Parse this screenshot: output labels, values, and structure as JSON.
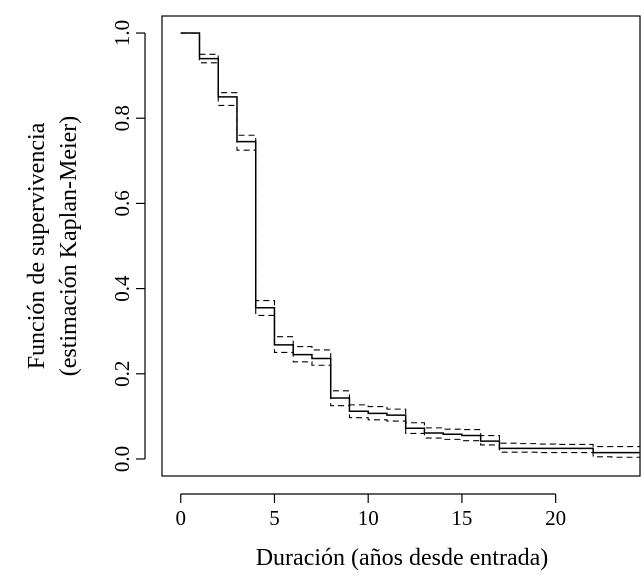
{
  "chart_data": {
    "type": "line",
    "xlabel": "Duración (años desde entrada)",
    "ylabel": [
      "Función de supervivencia",
      "(estimación Kaplan-Meier)"
    ],
    "xlim": [
      -1,
      24.5
    ],
    "ylim": [
      -0.04,
      1.04
    ],
    "x_ticks": [
      0,
      5,
      10,
      15,
      20
    ],
    "x_tick_labels": [
      "0",
      "5",
      "10",
      "15",
      "20"
    ],
    "y_ticks": [
      0.0,
      0.2,
      0.4,
      0.6,
      0.8,
      1.0
    ],
    "y_tick_labels": [
      "0.0",
      "0.2",
      "0.4",
      "0.6",
      "0.8",
      "1.0"
    ],
    "grid": false,
    "series": [
      {
        "role": "estimate",
        "line_style": "solid",
        "x": [
          0,
          1,
          2,
          3,
          4,
          5,
          6,
          7,
          8,
          9,
          10,
          11,
          12,
          13,
          14,
          15,
          16,
          17,
          18,
          19,
          20,
          21,
          22,
          23,
          24
        ],
        "y": [
          1.0,
          0.94,
          0.85,
          0.745,
          0.355,
          0.268,
          0.245,
          0.236,
          0.143,
          0.112,
          0.107,
          0.103,
          0.072,
          0.061,
          0.058,
          0.055,
          0.042,
          0.025,
          0.025,
          0.025,
          0.025,
          0.025,
          0.015,
          0.015,
          0.015
        ]
      },
      {
        "role": "upper-ci",
        "line_style": "dashed",
        "x": [
          0,
          1,
          2,
          3,
          4,
          5,
          6,
          7,
          8,
          9,
          10,
          11,
          12,
          13,
          14,
          15,
          16,
          17,
          18,
          19,
          20,
          21,
          22,
          23,
          24
        ],
        "y": [
          1.0,
          0.95,
          0.86,
          0.76,
          0.372,
          0.287,
          0.264,
          0.256,
          0.16,
          0.127,
          0.123,
          0.117,
          0.085,
          0.073,
          0.07,
          0.069,
          0.055,
          0.037,
          0.036,
          0.035,
          0.034,
          0.034,
          0.029,
          0.029,
          0.029
        ]
      },
      {
        "role": "lower-ci",
        "line_style": "dashed",
        "x": [
          0,
          1,
          2,
          3,
          4,
          5,
          6,
          7,
          8,
          9,
          10,
          11,
          12,
          13,
          14,
          15,
          16,
          17,
          18,
          19,
          20,
          21,
          22,
          23,
          24
        ],
        "y": [
          1.0,
          0.93,
          0.83,
          0.725,
          0.337,
          0.25,
          0.228,
          0.22,
          0.125,
          0.097,
          0.092,
          0.089,
          0.06,
          0.049,
          0.046,
          0.043,
          0.033,
          0.016,
          0.016,
          0.015,
          0.015,
          0.015,
          0.005,
          0.004,
          0.004
        ]
      }
    ]
  }
}
